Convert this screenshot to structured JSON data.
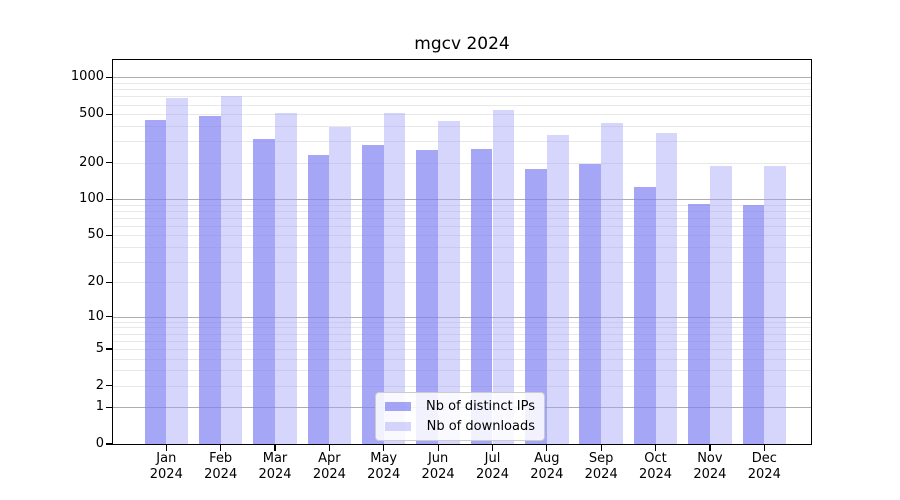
{
  "chart_data": {
    "type": "bar",
    "title": "mgcv 2024",
    "categories": [
      "Jan",
      "Feb",
      "Mar",
      "Apr",
      "May",
      "Jun",
      "Jul",
      "Aug",
      "Sep",
      "Oct",
      "Nov",
      "Dec"
    ],
    "year": "2024",
    "series": [
      {
        "name": "Nb of distinct IPs",
        "color": "#a6a6f4",
        "fill": "rgba(128,128,242,0.70)",
        "values": [
          450,
          482,
          310,
          233,
          280,
          256,
          260,
          176,
          195,
          125,
          91,
          90
        ]
      },
      {
        "name": "Nb of downloads",
        "color": "#d6d6fb",
        "fill": "rgba(164,164,248,0.45)",
        "values": [
          673,
          707,
          512,
          389,
          510,
          438,
          536,
          337,
          423,
          351,
          188,
          186
        ]
      }
    ],
    "yticks": [
      0,
      1,
      2,
      5,
      10,
      20,
      50,
      100,
      200,
      500,
      1000
    ],
    "ylim": [
      0,
      1388
    ],
    "xlabel": "",
    "ylabel": "",
    "scale": "log10(value+1)",
    "grid": "horizontal; dark lines at decades 1,10,100,1000; light minor lines at 2-9 steps",
    "legend_position": "lower center",
    "colors": {
      "major_gridline": "#aeaeae",
      "minor_gridline": "#e8e8e8",
      "spine": "#000000",
      "background": "#ffffff"
    }
  }
}
